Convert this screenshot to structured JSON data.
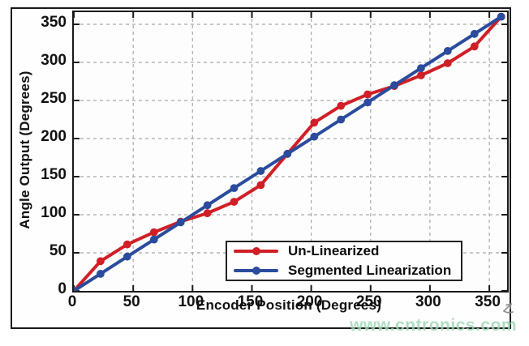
{
  "watermark": {
    "text": "www.cntronics.com",
    "color": "#9cd6b4"
  },
  "chart_data": {
    "type": "line",
    "title": "",
    "xlabel": "Encoder Position (Degrees)",
    "ylabel": "Angle Output (Degrees)",
    "xlim": [
      0,
      365
    ],
    "ylim": [
      0,
      366
    ],
    "xticks": [
      0,
      50,
      100,
      150,
      200,
      250,
      300,
      350
    ],
    "yticks": [
      0,
      50,
      100,
      150,
      200,
      250,
      300,
      350
    ],
    "grid": true,
    "legend_position": "lower right",
    "x": [
      0,
      22.5,
      45,
      67.5,
      90,
      112.5,
      135,
      157.5,
      180,
      202.5,
      225,
      247.5,
      270,
      292.5,
      315,
      337.5,
      360
    ],
    "series": [
      {
        "name": "Un-Linearized",
        "color": "#d01f27",
        "values": [
          0,
          39,
          61,
          77,
          91,
          102,
          117,
          139,
          180,
          221,
          243,
          258,
          269,
          283,
          299,
          321,
          360
        ]
      },
      {
        "name": "Segmented Linearization",
        "color": "#2b4b9d",
        "values": [
          0,
          22.5,
          45,
          67.5,
          90,
          112.5,
          135,
          157.5,
          180,
          202.5,
          225,
          247.5,
          270,
          292.5,
          315,
          337.5,
          360
        ]
      }
    ]
  }
}
